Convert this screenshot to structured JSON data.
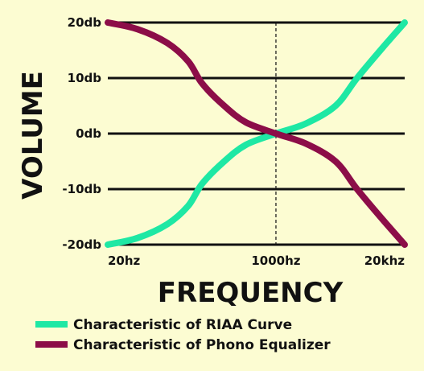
{
  "chart_data": {
    "type": "line",
    "title": "",
    "xlabel": "FREQUENCY",
    "ylabel": "VOLUME",
    "x_scale": "log",
    "xlim": [
      20,
      20000
    ],
    "ylim": [
      -20,
      20
    ],
    "y_ticks": [
      {
        "value": 20,
        "label": "20db"
      },
      {
        "value": 10,
        "label": "10db"
      },
      {
        "value": 0,
        "label": "0db"
      },
      {
        "value": -10,
        "label": "-10db"
      },
      {
        "value": -20,
        "label": "-20db"
      }
    ],
    "x_ticks": [
      {
        "value": 20,
        "label": "20hz"
      },
      {
        "value": 1000,
        "label": "1000hz"
      },
      {
        "value": 20000,
        "label": "20khz"
      }
    ],
    "reference_line": {
      "x": 1000,
      "style": "dashed"
    },
    "grid": "horizontal",
    "legend_position": "bottom-left",
    "series": [
      {
        "name": "Characteristic of RIAA Curve",
        "color": "#1ee8a4",
        "points": [
          [
            20,
            -20
          ],
          [
            40,
            -18.8
          ],
          [
            80,
            -16.3
          ],
          [
            130,
            -13
          ],
          [
            180,
            -9
          ],
          [
            300,
            -5
          ],
          [
            500,
            -2
          ],
          [
            1000,
            0
          ],
          [
            2000,
            1.8
          ],
          [
            4000,
            5
          ],
          [
            6600,
            10
          ],
          [
            12000,
            15.5
          ],
          [
            20000,
            20
          ]
        ]
      },
      {
        "name": "Characteristic of Phono Equalizer",
        "color": "#8c0d48",
        "points": [
          [
            20,
            20
          ],
          [
            40,
            18.8
          ],
          [
            80,
            16.3
          ],
          [
            130,
            13
          ],
          [
            180,
            9
          ],
          [
            300,
            5
          ],
          [
            500,
            2
          ],
          [
            1000,
            0
          ],
          [
            2000,
            -1.8
          ],
          [
            4000,
            -5
          ],
          [
            6600,
            -10
          ],
          [
            12000,
            -15.5
          ],
          [
            20000,
            -20
          ]
        ]
      }
    ]
  }
}
